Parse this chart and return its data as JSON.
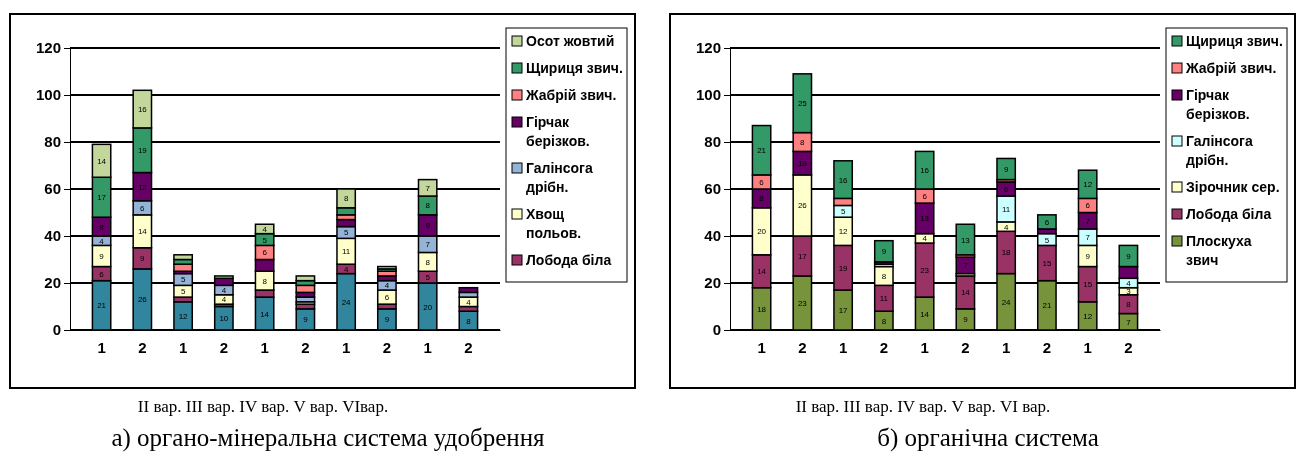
{
  "chart_data": [
    {
      "type": "bar",
      "stacked": true,
      "title": "а) органо-мінеральна система удобрення",
      "xlabel": "II вар.  III вар.  IV вар. V вар. VIвар.",
      "categories": [
        "1",
        "2",
        "1",
        "2",
        "1",
        "2",
        "1",
        "2",
        "1",
        "2"
      ],
      "ylim": [
        0,
        120
      ],
      "yticks": [
        0,
        20,
        40,
        60,
        80,
        100,
        120
      ],
      "grid": "y",
      "legend": "right",
      "series": [
        {
          "color": "#31859c",
          "values": [
            21,
            26,
            12,
            10,
            14,
            9,
            24,
            9,
            20,
            8
          ],
          "value_labels": [
            "21",
            "26",
            "12",
            "10",
            "14",
            "9",
            "24",
            "9",
            "20",
            "8"
          ]
        },
        {
          "name": "Лобода біла",
          "color": "#993366",
          "values": [
            6,
            9,
            2,
            1,
            3,
            2,
            4,
            2,
            5,
            2
          ],
          "value_labels": [
            "6",
            "9",
            null,
            null,
            null,
            null,
            "4",
            null,
            "5",
            null
          ]
        },
        {
          "name": "Хвощ польов.",
          "color": "#ffffcc",
          "values": [
            9,
            14,
            5,
            4,
            8,
            1,
            11,
            6,
            8,
            4
          ],
          "value_labels": [
            "9",
            "14",
            "5",
            "4",
            "8",
            null,
            "11",
            "6",
            "8",
            "4"
          ]
        },
        {
          "name": "Галінсога дрібн.",
          "color": "#95b3d7",
          "values": [
            4,
            6,
            5,
            4,
            0,
            2,
            5,
            4,
            7,
            2
          ],
          "value_labels": [
            "4",
            "6",
            "5",
            "4",
            null,
            null,
            "5",
            "4",
            "7",
            null
          ]
        },
        {
          "name": "Гірчак берізков.",
          "color": "#660066",
          "values": [
            8,
            12,
            1,
            3,
            5,
            2,
            3,
            2,
            9,
            2
          ],
          "value_labels": [
            "8",
            "12",
            null,
            null,
            null,
            null,
            null,
            null,
            "9",
            null
          ]
        },
        {
          "name": "Жабрій звич.",
          "color": "#ff8080",
          "values": [
            0,
            0,
            3,
            0,
            6,
            3,
            2,
            2,
            0,
            0
          ],
          "value_labels": [
            null,
            null,
            null,
            null,
            "6",
            null,
            null,
            null,
            null,
            null
          ]
        },
        {
          "name": "Щириця звич.",
          "color": "#339966",
          "values": [
            17,
            19,
            2,
            0,
            5,
            2,
            3,
            1,
            8,
            0
          ],
          "value_labels": [
            "17",
            "19",
            null,
            null,
            "5",
            null,
            null,
            null,
            "8",
            null
          ]
        },
        {
          "name": "Осот жовтий",
          "color": "#c3d69b",
          "values": [
            14,
            16,
            2,
            1,
            4,
            2,
            8,
            1,
            7,
            0
          ],
          "value_labels": [
            "14",
            "16",
            null,
            null,
            "4",
            null,
            "8",
            null,
            "7",
            null
          ]
        }
      ]
    },
    {
      "type": "bar",
      "stacked": true,
      "title": "б) органічна система",
      "xlabel": "II вар.  III вар.  IV вар. V вар. VI вар.",
      "categories": [
        "1",
        "2",
        "1",
        "2",
        "1",
        "2",
        "1",
        "2",
        "1",
        "2"
      ],
      "ylim": [
        0,
        120
      ],
      "yticks": [
        0,
        20,
        40,
        60,
        80,
        100,
        120
      ],
      "grid": "y",
      "legend": "right",
      "series": [
        {
          "name": "Плоскуха звич",
          "color": "#77933c",
          "values": [
            18,
            23,
            17,
            8,
            14,
            9,
            24,
            21,
            12,
            7
          ],
          "value_labels": [
            "18",
            "23",
            "17",
            "8",
            "14",
            "9",
            "24",
            "21",
            "12",
            "7"
          ]
        },
        {
          "name": "Лобода біла",
          "color": "#993366",
          "values": [
            14,
            17,
            19,
            11,
            23,
            14,
            18,
            15,
            15,
            8
          ],
          "value_labels": [
            "14",
            "17",
            "19",
            "11",
            "23",
            "14",
            "18",
            "15",
            "15",
            "8"
          ]
        },
        {
          "name": "Зірочник сер.",
          "color": "#ffffcc",
          "values": [
            20,
            26,
            12,
            8,
            4,
            1,
            4,
            0,
            9,
            3
          ],
          "value_labels": [
            "20",
            "26",
            "12",
            "8",
            "4",
            null,
            "4",
            null,
            "9",
            "3"
          ]
        },
        {
          "name": "Галінсога дрібн.",
          "color": "#ccffff",
          "values": [
            0,
            0,
            5,
            1,
            0,
            0,
            11,
            5,
            7,
            4
          ],
          "value_labels": [
            null,
            null,
            "5",
            null,
            null,
            null,
            "11",
            "5",
            "7",
            "4"
          ]
        },
        {
          "name": "Гірчак берізков.",
          "color": "#660066",
          "values": [
            8,
            10,
            0,
            1,
            13,
            7,
            6,
            2,
            7,
            5
          ],
          "value_labels": [
            "8",
            "10",
            null,
            null,
            "13",
            "7",
            "6",
            null,
            "7",
            null
          ]
        },
        {
          "name": "Жабрій звич.",
          "color": "#ff8080",
          "values": [
            6,
            8,
            3,
            0,
            6,
            1,
            1,
            0,
            6,
            0
          ],
          "value_labels": [
            "6",
            "8",
            null,
            null,
            "6",
            null,
            null,
            null,
            "6",
            null
          ]
        },
        {
          "name": "Щириця звич.",
          "color": "#339966",
          "values": [
            21,
            25,
            16,
            9,
            16,
            13,
            9,
            6,
            12,
            9
          ],
          "value_labels": [
            "21",
            "25",
            "16",
            "9",
            "16",
            "13",
            "9",
            "6",
            "12",
            "9"
          ]
        }
      ]
    }
  ]
}
